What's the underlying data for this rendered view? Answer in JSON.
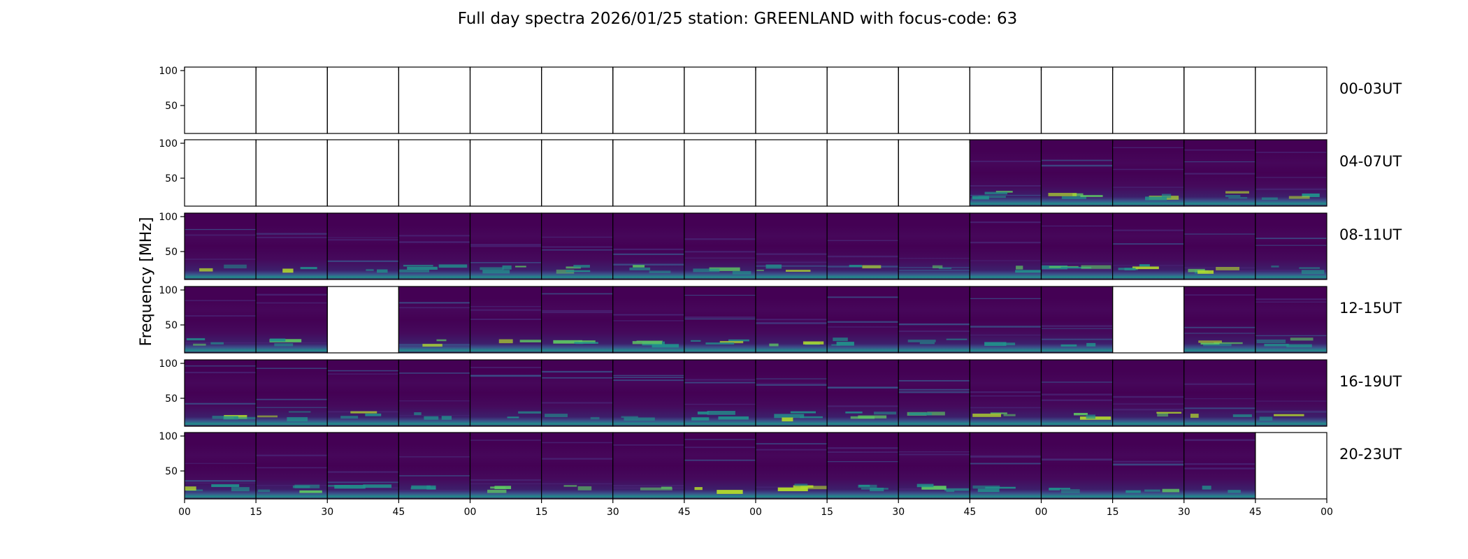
{
  "chart_data": {
    "type": "heatmap",
    "title": "Full day spectra 2026/01/25 station: GREENLAND with focus-code: 63",
    "ylabel": "Frequency [MHz]",
    "xlabel": "",
    "ylim": [
      10,
      105
    ],
    "yticks": [
      50,
      100
    ],
    "xtick_labels": [
      "00",
      "15",
      "30",
      "45",
      "00",
      "15",
      "30",
      "45",
      "00",
      "15",
      "30",
      "45",
      "00",
      "15",
      "30",
      "45",
      "00"
    ],
    "panels_per_row": 16,
    "colormap": "viridis",
    "rows": [
      {
        "label": "00-03UT",
        "data_present": [
          0,
          0,
          0,
          0,
          0,
          0,
          0,
          0,
          0,
          0,
          0,
          0,
          0,
          0,
          0,
          0
        ]
      },
      {
        "label": "04-07UT",
        "data_present": [
          0,
          0,
          0,
          0,
          0,
          0,
          0,
          0,
          0,
          0,
          0,
          1,
          1,
          1,
          1,
          1
        ]
      },
      {
        "label": "08-11UT",
        "data_present": [
          1,
          1,
          1,
          1,
          1,
          1,
          1,
          1,
          1,
          1,
          1,
          1,
          1,
          1,
          1,
          1
        ]
      },
      {
        "label": "12-15UT",
        "data_present": [
          1,
          1,
          0,
          1,
          1,
          1,
          1,
          1,
          1,
          1,
          1,
          1,
          1,
          0,
          1,
          1
        ]
      },
      {
        "label": "16-19UT",
        "data_present": [
          1,
          1,
          1,
          1,
          1,
          1,
          1,
          1,
          1,
          1,
          1,
          1,
          1,
          1,
          1,
          1
        ]
      },
      {
        "label": "20-23UT",
        "data_present": [
          1,
          1,
          1,
          1,
          1,
          1,
          1,
          1,
          1,
          1,
          1,
          1,
          1,
          1,
          1,
          0
        ]
      }
    ],
    "colors": {
      "background": "#440154",
      "mid": "#3b528b",
      "bright": "#21918c",
      "hot": "#5ec962",
      "peak": "#b5de2b"
    }
  }
}
